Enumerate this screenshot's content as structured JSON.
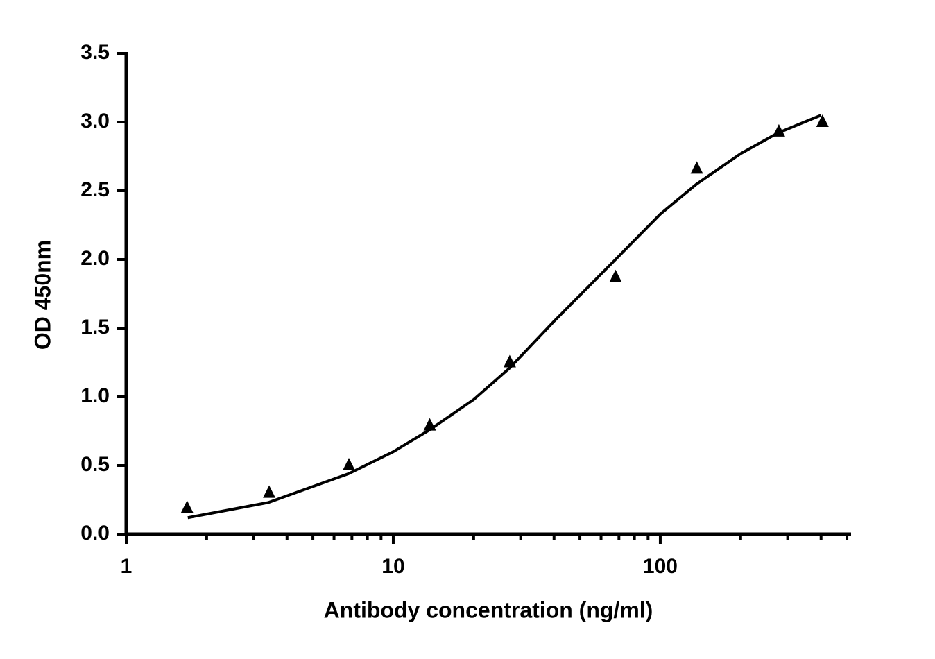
{
  "chart_data": {
    "type": "scatter",
    "x_label": "Antibody concentration (ng/ml)",
    "y_label": "OD 450nm",
    "xscale": "log",
    "xlim": [
      1,
      512
    ],
    "ylim": [
      0,
      3.5
    ],
    "xticks": [
      1,
      10,
      100
    ],
    "yticks": [
      {
        "value": 0,
        "label": "0.0"
      },
      0.5,
      {
        "value": 1,
        "label": "1.0"
      },
      1.5,
      {
        "value": 2,
        "label": "2.0"
      },
      2.5,
      {
        "value": 3,
        "label": "3.0"
      },
      3.5
    ],
    "grid": false,
    "series": [
      {
        "style": "marker",
        "marker": "triangle",
        "color": "#000000",
        "x": [
          1.69,
          3.43,
          6.82,
          13.7,
          27.3,
          68,
          137,
          278,
          405
        ],
        "values": [
          0.19,
          0.3,
          0.5,
          0.79,
          1.25,
          1.87,
          2.66,
          2.93,
          3.0
        ]
      },
      {
        "style": "line",
        "color": "#000000",
        "x": [
          1.7,
          3.4,
          6.8,
          10,
          13.7,
          20,
          27.3,
          40,
          68,
          100,
          137,
          200,
          275,
          400
        ],
        "values": [
          0.12,
          0.23,
          0.44,
          0.6,
          0.76,
          0.98,
          1.21,
          1.55,
          2.0,
          2.33,
          2.55,
          2.77,
          2.92,
          3.05
        ]
      }
    ]
  }
}
